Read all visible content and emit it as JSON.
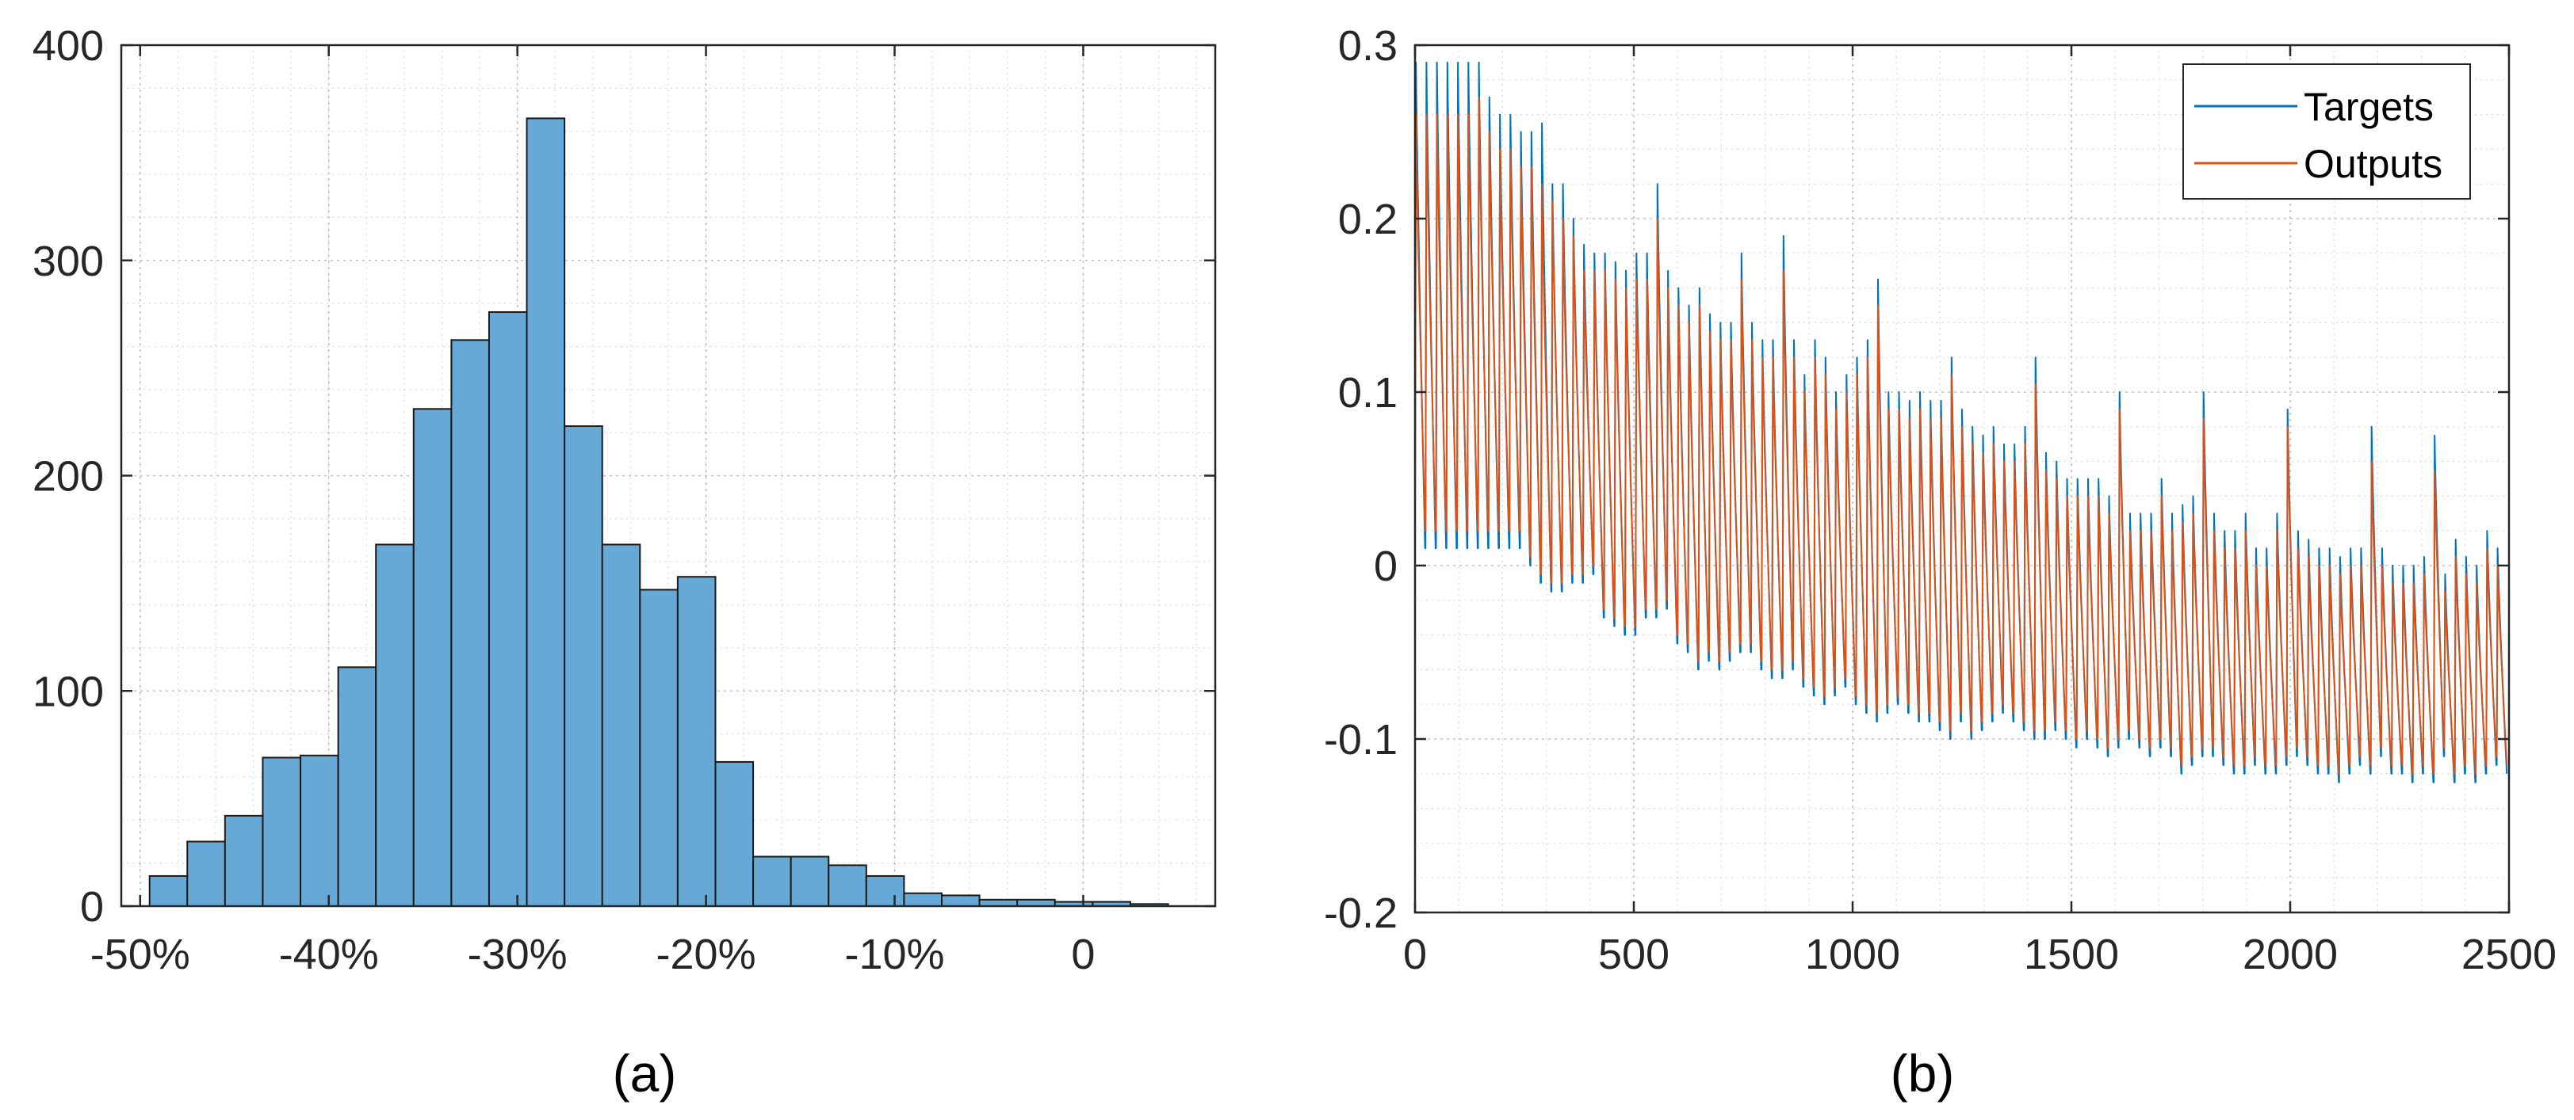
{
  "colors": {
    "bar_fill": "#66a9d6",
    "targets": "#0072bd",
    "outputs": "#d95319"
  },
  "chart_data": [
    {
      "type": "bar",
      "caption": "(a)",
      "grid": true,
      "xlim": [
        -51.0,
        7.0
      ],
      "ylim": [
        0,
        400
      ],
      "bin_edges": [
        -49.5,
        -47.5,
        -45.5,
        -43.5,
        -41.5,
        -39.5,
        -37.5,
        -35.5,
        -33.5,
        -31.5,
        -29.5,
        -27.5,
        -25.5,
        -23.5,
        -21.5,
        -19.5,
        -17.5,
        -15.5,
        -13.5,
        -11.5,
        -9.5,
        -7.5,
        -5.5,
        -3.5,
        -1.5,
        0.5,
        2.5,
        4.5
      ],
      "values": [
        14,
        30,
        42,
        69,
        70,
        111,
        168,
        231,
        263,
        276,
        366,
        223,
        168,
        147,
        153,
        67,
        23,
        23,
        19,
        14,
        6,
        5,
        3,
        3,
        2,
        2,
        1,
        2
      ],
      "xticks": [
        -50,
        -40,
        -30,
        -20,
        -10,
        0
      ],
      "xtick_labels": [
        "-50%",
        "-40%",
        "-30%",
        "-20%",
        "-10%",
        "0"
      ],
      "yticks": [
        0,
        100,
        200,
        300,
        400
      ],
      "ytick_labels": [
        "0",
        "100",
        "200",
        "300",
        "400"
      ]
    },
    {
      "type": "line",
      "caption": "(b)",
      "grid": true,
      "legend_position": "top-right",
      "xlim": [
        0,
        2500
      ],
      "ylim": [
        -0.2,
        0.3
      ],
      "xticks": [
        0,
        500,
        1000,
        1500,
        2000,
        2500
      ],
      "xtick_labels": [
        "0",
        "500",
        "1000",
        "1500",
        "2000",
        "2500"
      ],
      "yticks": [
        -0.2,
        -0.1,
        0,
        0.1,
        0.2,
        0.3
      ],
      "ytick_labels": [
        "-0.2",
        "-0.1",
        "0",
        "0.1",
        "0.2",
        "0.3"
      ],
      "cycle_length": 24,
      "series": [
        {
          "name": "Targets",
          "cycle_peaks": [
            0.29,
            0.29,
            0.29,
            0.29,
            0.29,
            0.29,
            0.29,
            0.27,
            0.26,
            0.26,
            0.25,
            0.25,
            0.255,
            0.22,
            0.22,
            0.2,
            0.185,
            0.18,
            0.18,
            0.175,
            0.17,
            0.18,
            0.18,
            0.22,
            0.17,
            0.16,
            0.15,
            0.16,
            0.145,
            0.14,
            0.14,
            0.18,
            0.14,
            0.13,
            0.13,
            0.19,
            0.13,
            0.11,
            0.13,
            0.12,
            0.1,
            0.11,
            0.12,
            0.13,
            0.165,
            0.1,
            0.1,
            0.095,
            0.1,
            0.095,
            0.095,
            0.12,
            0.09,
            0.08,
            0.075,
            0.08,
            0.07,
            0.07,
            0.08,
            0.12,
            0.065,
            0.06,
            0.05,
            0.05,
            0.05,
            0.05,
            0.04,
            0.1,
            0.03,
            0.03,
            0.03,
            0.05,
            0.03,
            0.035,
            0.04,
            0.1,
            0.03,
            0.02,
            0.02,
            0.03,
            0.01,
            0.01,
            0.03,
            0.09,
            0.02,
            0.015,
            0.01,
            0.01,
            0.005,
            0.01,
            0.01,
            0.08,
            0.01,
            0.0,
            0.0,
            0.0,
            0.005,
            0.075,
            -0.005,
            0.015,
            0.005,
            0.0,
            0.02,
            0.01
          ],
          "cycle_troughs": [
            0.01,
            0.01,
            0.01,
            0.01,
            0.01,
            0.01,
            0.01,
            0.01,
            0.01,
            0.01,
            0.0,
            -0.01,
            -0.015,
            -0.015,
            -0.01,
            -0.01,
            -0.005,
            -0.03,
            -0.035,
            -0.04,
            -0.04,
            -0.03,
            -0.03,
            -0.025,
            -0.045,
            -0.05,
            -0.06,
            -0.055,
            -0.06,
            -0.055,
            -0.05,
            -0.05,
            -0.06,
            -0.065,
            -0.065,
            -0.06,
            -0.07,
            -0.075,
            -0.08,
            -0.075,
            -0.07,
            -0.08,
            -0.085,
            -0.09,
            -0.085,
            -0.08,
            -0.085,
            -0.09,
            -0.09,
            -0.095,
            -0.1,
            -0.09,
            -0.1,
            -0.095,
            -0.09,
            -0.085,
            -0.09,
            -0.095,
            -0.1,
            -0.1,
            -0.095,
            -0.1,
            -0.105,
            -0.1,
            -0.105,
            -0.11,
            -0.105,
            -0.1,
            -0.105,
            -0.11,
            -0.105,
            -0.11,
            -0.12,
            -0.115,
            -0.11,
            -0.11,
            -0.115,
            -0.12,
            -0.12,
            -0.115,
            -0.12,
            -0.12,
            -0.115,
            -0.11,
            -0.115,
            -0.12,
            -0.12,
            -0.125,
            -0.12,
            -0.115,
            -0.12,
            -0.11,
            -0.12,
            -0.12,
            -0.125,
            -0.12,
            -0.125,
            -0.11,
            -0.125,
            -0.12,
            -0.125,
            -0.12,
            -0.115,
            -0.12
          ]
        },
        {
          "name": "Outputs",
          "cycle_peaks": [
            0.26,
            0.26,
            0.26,
            0.26,
            0.26,
            0.26,
            0.27,
            0.25,
            0.24,
            0.24,
            0.23,
            0.23,
            0.22,
            0.21,
            0.2,
            0.19,
            0.17,
            0.17,
            0.17,
            0.165,
            0.16,
            0.165,
            0.165,
            0.2,
            0.16,
            0.15,
            0.14,
            0.15,
            0.135,
            0.13,
            0.13,
            0.165,
            0.13,
            0.12,
            0.12,
            0.17,
            0.12,
            0.1,
            0.12,
            0.11,
            0.09,
            0.1,
            0.11,
            0.12,
            0.15,
            0.09,
            0.09,
            0.085,
            0.09,
            0.085,
            0.085,
            0.11,
            0.08,
            0.07,
            0.065,
            0.07,
            0.06,
            0.06,
            0.07,
            0.105,
            0.055,
            0.05,
            0.04,
            0.04,
            0.04,
            0.04,
            0.03,
            0.09,
            0.02,
            0.02,
            0.02,
            0.04,
            0.02,
            0.025,
            0.03,
            0.085,
            0.02,
            0.01,
            0.01,
            0.02,
            0.0,
            0.0,
            0.02,
            0.08,
            0.01,
            0.005,
            0.0,
            0.0,
            -0.005,
            0.0,
            0.0,
            0.06,
            0.0,
            -0.01,
            -0.01,
            -0.01,
            -0.005,
            0.055,
            -0.015,
            0.005,
            -0.005,
            -0.01,
            0.01,
            0.0
          ],
          "cycle_troughs": [
            0.02,
            0.02,
            0.02,
            0.02,
            0.02,
            0.02,
            0.02,
            0.02,
            0.02,
            0.02,
            0.005,
            -0.005,
            -0.01,
            -0.01,
            -0.005,
            -0.005,
            0.0,
            -0.025,
            -0.03,
            -0.035,
            -0.035,
            -0.025,
            -0.025,
            -0.02,
            -0.04,
            -0.045,
            -0.055,
            -0.05,
            -0.055,
            -0.05,
            -0.045,
            -0.045,
            -0.055,
            -0.06,
            -0.06,
            -0.055,
            -0.065,
            -0.07,
            -0.075,
            -0.07,
            -0.065,
            -0.075,
            -0.08,
            -0.085,
            -0.08,
            -0.075,
            -0.08,
            -0.085,
            -0.085,
            -0.09,
            -0.095,
            -0.085,
            -0.095,
            -0.09,
            -0.085,
            -0.08,
            -0.085,
            -0.09,
            -0.095,
            -0.095,
            -0.09,
            -0.095,
            -0.1,
            -0.095,
            -0.1,
            -0.105,
            -0.1,
            -0.095,
            -0.1,
            -0.105,
            -0.1,
            -0.105,
            -0.115,
            -0.11,
            -0.105,
            -0.105,
            -0.11,
            -0.115,
            -0.115,
            -0.11,
            -0.115,
            -0.115,
            -0.11,
            -0.105,
            -0.11,
            -0.115,
            -0.115,
            -0.12,
            -0.115,
            -0.11,
            -0.115,
            -0.105,
            -0.115,
            -0.115,
            -0.12,
            -0.115,
            -0.12,
            -0.105,
            -0.12,
            -0.115,
            -0.12,
            -0.115,
            -0.11,
            -0.115
          ]
        }
      ]
    }
  ]
}
